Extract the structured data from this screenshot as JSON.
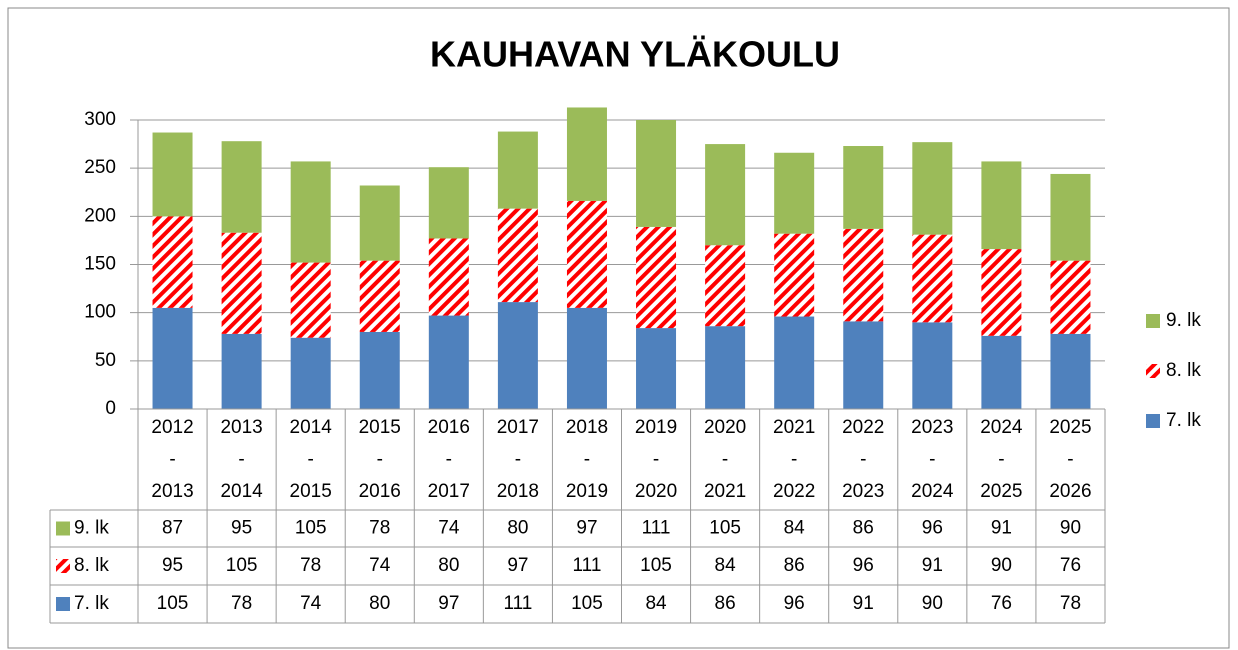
{
  "chart_data": {
    "type": "stacked-bar",
    "title": "KAUHAVAN YLÄKOULU",
    "categories": [
      "2012\n-\n2013",
      "2013\n-\n2014",
      "2014\n-\n2015",
      "2015\n-\n2016",
      "2016\n-\n2017",
      "2017\n-\n2018",
      "2018\n-\n2019",
      "2019\n-\n2020",
      "2020\n-\n2021",
      "2021\n-\n2022",
      "2022\n-\n2023",
      "2023\n-\n2024",
      "2024\n-\n2025",
      "2025\n-\n2026"
    ],
    "series": [
      {
        "name": "7. lk",
        "color": "#4f81bd",
        "values": [
          105,
          78,
          74,
          80,
          97,
          111,
          105,
          84,
          86,
          96,
          91,
          90,
          76,
          78
        ]
      },
      {
        "name": "8. lk",
        "color": "#ff0000",
        "pattern": "diagonal-stripes",
        "values": [
          95,
          105,
          78,
          74,
          80,
          97,
          111,
          105,
          84,
          86,
          96,
          91,
          90,
          76
        ]
      },
      {
        "name": "9. lk",
        "color": "#9bbb59",
        "values": [
          87,
          95,
          105,
          78,
          74,
          80,
          97,
          111,
          105,
          84,
          86,
          96,
          91,
          90
        ]
      }
    ],
    "ylim": [
      0,
      300
    ],
    "yticks": [
      0,
      50,
      100,
      150,
      200,
      250,
      300
    ],
    "grid": true,
    "legend": "right",
    "data_table": true
  }
}
